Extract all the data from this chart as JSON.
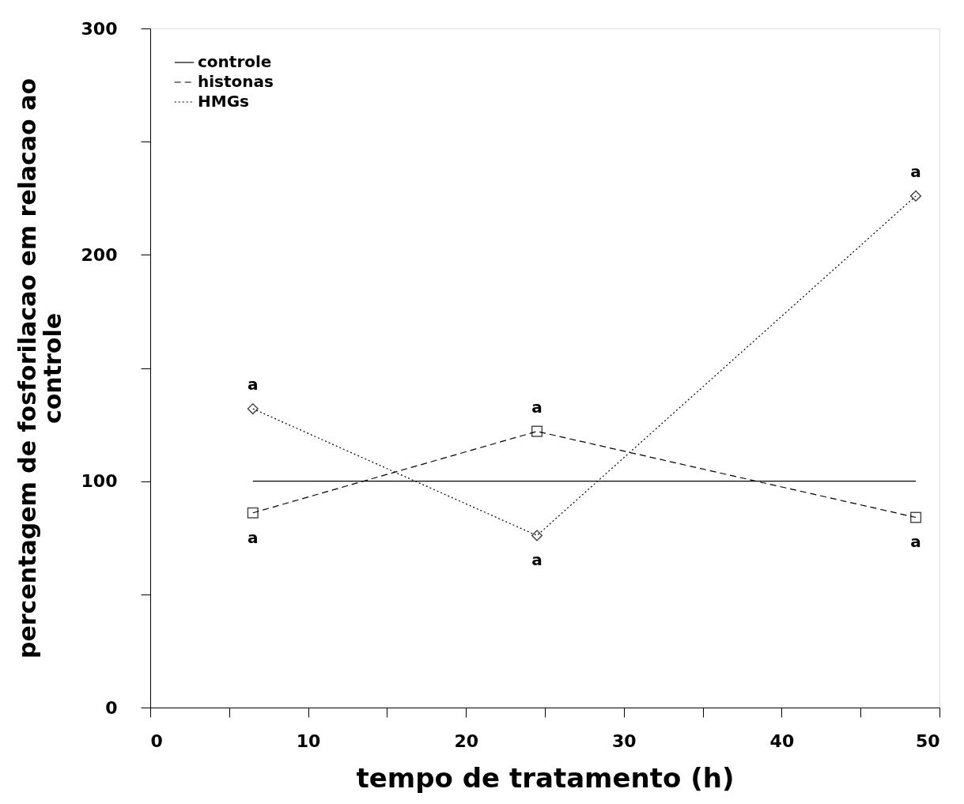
{
  "chart_data": {
    "type": "line",
    "xlabel": "tempo de tratamento (h)",
    "ylabel": "percentagem de fosforilacao em relacao ao controle",
    "xlim": [
      0,
      50
    ],
    "ylim": [
      0,
      300
    ],
    "xticks": [
      0,
      {
        "value": 5,
        "label": null
      },
      10,
      {
        "value": 15,
        "label": null
      },
      20,
      {
        "value": 25,
        "label": null
      },
      30,
      {
        "value": 35,
        "label": null
      },
      40,
      {
        "value": 45,
        "label": null
      },
      50
    ],
    "yticks": [
      0,
      {
        "value": 50,
        "label": null
      },
      100,
      {
        "value": 150,
        "label": null
      },
      200,
      {
        "value": 250,
        "label": null
      },
      300
    ],
    "grid": false,
    "legend": "top left",
    "series": [
      {
        "name": "controle",
        "color": "#000000",
        "x": [
          6.5,
          48.5
        ],
        "values": [
          100,
          100
        ],
        "marker": "none",
        "line_style": "solid"
      },
      {
        "name": "histonas",
        "color": "#000000",
        "x": [
          6.5,
          24.5,
          48.5
        ],
        "values": [
          86,
          122,
          84
        ],
        "marker": "square",
        "line_style": "dashed"
      },
      {
        "name": "HMGs",
        "color": "#000000",
        "x": [
          6.5,
          24.5,
          48.5
        ],
        "values": [
          132,
          76,
          226
        ],
        "marker": "diamond",
        "line_style": "dotted"
      }
    ],
    "annotations": [
      {
        "text": "a",
        "x": 6.5,
        "y": 132
      },
      {
        "text": "a",
        "x": 6.5,
        "y": 86
      },
      {
        "text": "a",
        "x": 24.5,
        "y": 122
      },
      {
        "text": "a",
        "x": 24.5,
        "y": 76
      },
      {
        "text": "a",
        "x": 48.5,
        "y": 226
      },
      {
        "text": "a",
        "x": 48.5,
        "y": 84
      }
    ]
  }
}
